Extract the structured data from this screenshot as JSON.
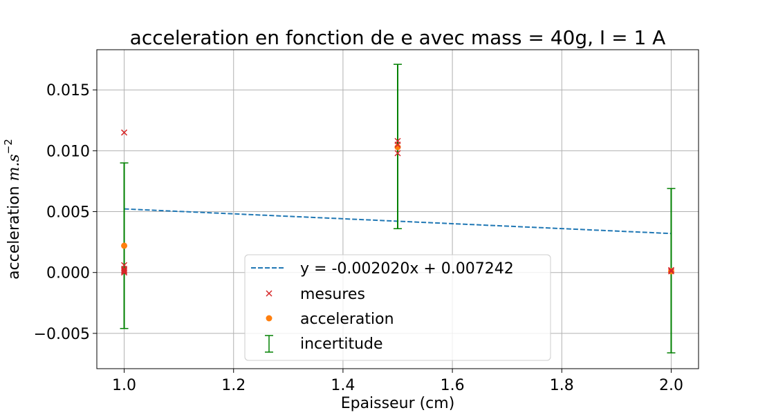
{
  "chart_data": {
    "type": "scatter",
    "title": "acceleration en fonction de e avec mass = 40g, I = 1 A",
    "xlabel": "Epaisseur (cm)",
    "ylabel_prefix": "acceleration ",
    "ylabel_math": "m.s",
    "ylabel_exponent": "−2",
    "xlim": [
      0.95,
      2.05
    ],
    "ylim": [
      -0.0079,
      0.0183
    ],
    "xticks": [
      {
        "value": 1.0,
        "label": "1.0"
      },
      {
        "value": 1.2,
        "label": "1.2"
      },
      {
        "value": 1.4,
        "label": "1.4"
      },
      {
        "value": 1.6,
        "label": "1.6"
      },
      {
        "value": 1.8,
        "label": "1.8"
      },
      {
        "value": 2.0,
        "label": "2.0"
      }
    ],
    "yticks": [
      {
        "value": -0.005,
        "label": "−0.005"
      },
      {
        "value": 0.0,
        "label": "0.000"
      },
      {
        "value": 0.005,
        "label": "0.005"
      },
      {
        "value": 0.01,
        "label": "0.010"
      },
      {
        "value": 0.015,
        "label": "0.015"
      }
    ],
    "grid": true,
    "legend_position": "lower-center",
    "fit": {
      "name": "y = -0.002020x + 0.007242",
      "slope": -0.00202,
      "intercept": 0.007242,
      "x_range": [
        1.0,
        2.0
      ],
      "color": "#1f77b4",
      "style": "dashed"
    },
    "mesures": {
      "name": "mesures",
      "color": "#d62728",
      "marker": "x",
      "points": [
        {
          "x": 1.0,
          "y": 0.0115
        },
        {
          "x": 1.0,
          "y": 0.0006
        },
        {
          "x": 1.0,
          "y": 0.0003
        },
        {
          "x": 1.0,
          "y": 0.0002
        },
        {
          "x": 1.0,
          "y": 0.0001
        },
        {
          "x": 1.0,
          "y": 0.0
        },
        {
          "x": 1.5,
          "y": 0.0108
        },
        {
          "x": 1.5,
          "y": 0.0105
        },
        {
          "x": 1.5,
          "y": 0.0098
        },
        {
          "x": 2.0,
          "y": 0.0002
        },
        {
          "x": 2.0,
          "y": 0.0001
        }
      ]
    },
    "acceleration": {
      "name": "acceleration",
      "color": "#ff7f0e",
      "marker": "circle",
      "points": [
        {
          "x": 1.0,
          "y": 0.0022
        },
        {
          "x": 1.5,
          "y": 0.0103
        },
        {
          "x": 2.0,
          "y": 0.0001
        }
      ]
    },
    "incertitude": {
      "name": "incertitude",
      "color": "#008000",
      "bars": [
        {
          "x": 1.0,
          "low": -0.0046,
          "high": 0.009
        },
        {
          "x": 1.5,
          "low": 0.0036,
          "high": 0.0171
        },
        {
          "x": 2.0,
          "low": -0.0066,
          "high": 0.0069
        }
      ]
    },
    "legend": {
      "fit_label": "y = -0.002020x + 0.007242",
      "mesures_label": "mesures",
      "acceleration_label": "acceleration",
      "incertitude_label": "incertitude"
    },
    "colors": {
      "grid": "#b0b0b0",
      "axes": "#000000",
      "legend_border": "#cccccc"
    }
  }
}
